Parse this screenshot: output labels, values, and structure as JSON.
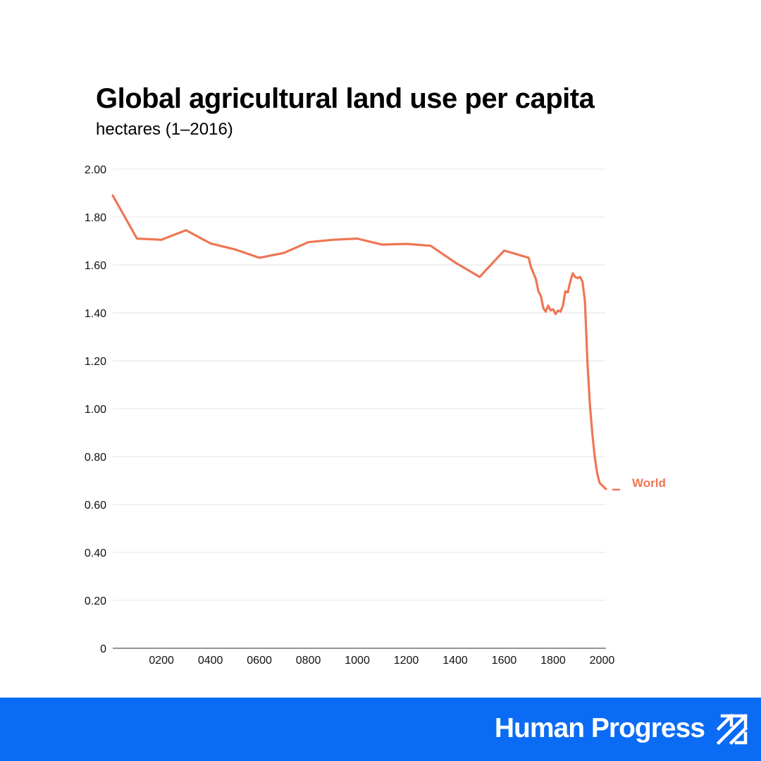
{
  "header": {
    "title": "Global agricultural land use per capita",
    "subtitle": "hectares (1–2016)"
  },
  "footer": {
    "brand": "Human Progress",
    "logo_icon": "double-arrow-up-right-icon",
    "background_color": "#0a6cf5"
  },
  "chart_data": {
    "type": "line",
    "title": "Global agricultural land use per capita",
    "subtitle": "hectares (1–2016)",
    "xlabel": "",
    "ylabel": "",
    "xlim": [
      1,
      2016
    ],
    "ylim": [
      0,
      2.0
    ],
    "grid": true,
    "x_ticks": [
      {
        "value": 200,
        "label": "0200"
      },
      {
        "value": 400,
        "label": "0400"
      },
      {
        "value": 600,
        "label": "0600"
      },
      {
        "value": 800,
        "label": "0800"
      },
      {
        "value": 1000,
        "label": "1000"
      },
      {
        "value": 1200,
        "label": "1200"
      },
      {
        "value": 1400,
        "label": "1400"
      },
      {
        "value": 1600,
        "label": "1600"
      },
      {
        "value": 1800,
        "label": "1800"
      },
      {
        "value": 2000,
        "label": "2000"
      }
    ],
    "y_ticks": [
      {
        "value": 0,
        "label": "0"
      },
      {
        "value": 0.2,
        "label": "0.20"
      },
      {
        "value": 0.4,
        "label": "0.40"
      },
      {
        "value": 0.6,
        "label": "0.60"
      },
      {
        "value": 0.8,
        "label": "0.80"
      },
      {
        "value": 1.0,
        "label": "1.00"
      },
      {
        "value": 1.2,
        "label": "1.20"
      },
      {
        "value": 1.4,
        "label": "1.40"
      },
      {
        "value": 1.6,
        "label": "1.60"
      },
      {
        "value": 1.8,
        "label": "1.80"
      },
      {
        "value": 2.0,
        "label": "2.00"
      }
    ],
    "series": [
      {
        "name": "World",
        "color": "#ee7654",
        "x": [
          1,
          100,
          200,
          300,
          400,
          500,
          600,
          700,
          800,
          900,
          1000,
          1100,
          1200,
          1300,
          1400,
          1500,
          1600,
          1700,
          1710,
          1720,
          1730,
          1740,
          1750,
          1760,
          1770,
          1780,
          1790,
          1800,
          1810,
          1820,
          1830,
          1840,
          1850,
          1860,
          1870,
          1880,
          1890,
          1900,
          1910,
          1920,
          1930,
          1940,
          1950,
          1960,
          1970,
          1980,
          1990,
          2000,
          2010,
          2016
        ],
        "y": [
          1.89,
          1.71,
          1.705,
          1.745,
          1.69,
          1.665,
          1.63,
          1.65,
          1.695,
          1.705,
          1.71,
          1.685,
          1.688,
          1.68,
          1.61,
          1.55,
          1.66,
          1.63,
          1.59,
          1.565,
          1.54,
          1.49,
          1.47,
          1.42,
          1.405,
          1.43,
          1.41,
          1.415,
          1.395,
          1.41,
          1.405,
          1.43,
          1.49,
          1.485,
          1.53,
          1.565,
          1.55,
          1.545,
          1.55,
          1.53,
          1.45,
          1.2,
          1.02,
          0.9,
          0.8,
          0.73,
          0.69,
          0.68,
          0.67,
          0.665
        ]
      }
    ]
  }
}
